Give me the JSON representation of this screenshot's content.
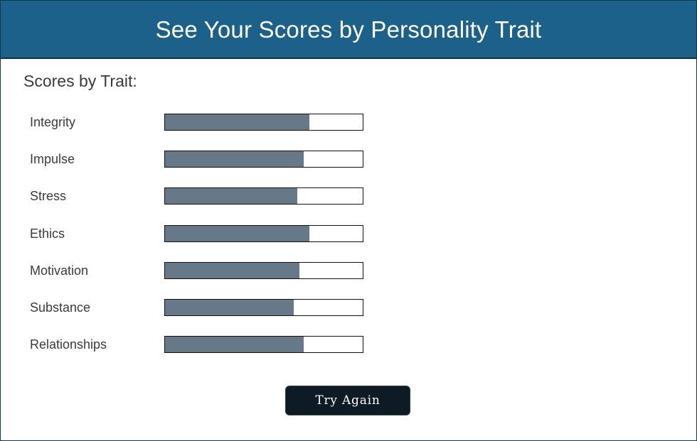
{
  "header": {
    "title": "See Your Scores by Personality Trait"
  },
  "section_title": "Scores by Trait:",
  "traits": [
    {
      "label": "Integrity",
      "score_fraction": 0.73
    },
    {
      "label": "Impulse",
      "score_fraction": 0.7
    },
    {
      "label": "Stress",
      "score_fraction": 0.67
    },
    {
      "label": "Ethics",
      "score_fraction": 0.73
    },
    {
      "label": "Motivation",
      "score_fraction": 0.68
    },
    {
      "label": "Substance",
      "score_fraction": 0.65
    },
    {
      "label": "Relationships",
      "score_fraction": 0.7
    }
  ],
  "try_again_label": "Try Again",
  "colors": {
    "header_bg": "#1b6189",
    "bar_fill": "#677888",
    "button_bg": "#0e1a24"
  }
}
